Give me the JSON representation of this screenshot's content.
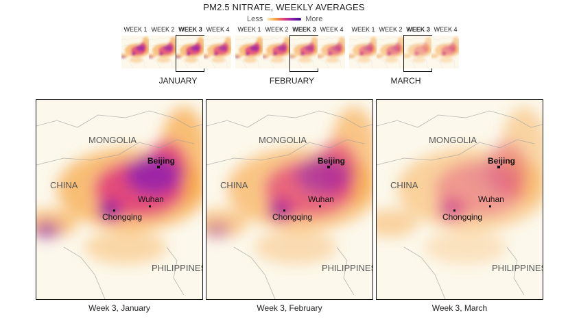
{
  "title": "PM2.5 NITRATE, WEEKLY AVERAGES",
  "legend": {
    "low_label": "Less",
    "high_label": "More",
    "colors": [
      "#fbf0c8",
      "#f6a23c",
      "#e0407b",
      "#8a20b3",
      "#3a0d8e"
    ]
  },
  "months": [
    {
      "name": "JANUARY",
      "selected_week": 3,
      "weeks": [
        {
          "label": "WEEK 1",
          "intensity": 0.8
        },
        {
          "label": "WEEK 2",
          "intensity": 0.75
        },
        {
          "label": "WEEK 3",
          "intensity": 0.85
        },
        {
          "label": "WEEK 4",
          "intensity": 0.7
        }
      ]
    },
    {
      "name": "FEBRUARY",
      "selected_week": 3,
      "weeks": [
        {
          "label": "WEEK 1",
          "intensity": 0.8
        },
        {
          "label": "WEEK 2",
          "intensity": 0.7
        },
        {
          "label": "WEEK 3",
          "intensity": 0.6
        },
        {
          "label": "WEEK 4",
          "intensity": 0.5
        }
      ]
    },
    {
      "name": "MARCH",
      "selected_week": 3,
      "weeks": [
        {
          "label": "WEEK 1",
          "intensity": 0.45
        },
        {
          "label": "WEEK 2",
          "intensity": 0.4
        },
        {
          "label": "WEEK 3",
          "intensity": 0.2
        },
        {
          "label": "WEEK 4",
          "intensity": 0.35
        }
      ]
    }
  ],
  "maps": [
    {
      "caption": "Week 3, January",
      "intensity": 0.95
    },
    {
      "caption": "Week 3, February",
      "intensity": 0.7
    },
    {
      "caption": "Week 3, March",
      "intensity": 0.3
    }
  ],
  "places": {
    "mongolia": "MONGOLIA",
    "china": "CHINA",
    "philippines": "PHILIPPINES",
    "beijing": "Beijing",
    "wuhan": "Wuhan",
    "chongqing": "Chongqing"
  }
}
